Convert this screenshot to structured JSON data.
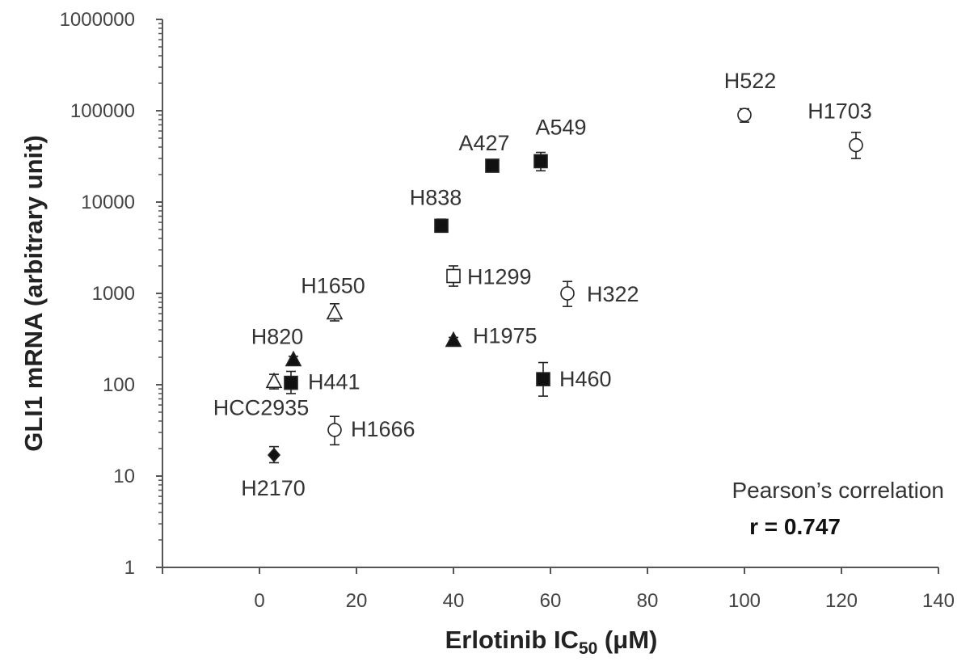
{
  "chart_data": {
    "type": "scatter",
    "title": "",
    "xlabel_main": "Erlotinib IC",
    "xlabel_sub": "50",
    "xlabel_unit": " (μM)",
    "ylabel": "GLI1 mRNA  (arbitrary unit)",
    "xlim": [
      -20,
      140
    ],
    "xticks": [
      0,
      20,
      40,
      60,
      80,
      100,
      120,
      140
    ],
    "ylim": [
      1,
      1000000
    ],
    "yscale": "log",
    "yticks": [
      1,
      10,
      100,
      1000,
      10000,
      100000,
      1000000
    ],
    "ytick_labels": [
      "1",
      "10",
      "100",
      "1000",
      "10000",
      "100000",
      "1000000"
    ],
    "grid": false,
    "annotation": {
      "line1": "Pearson’s correlation",
      "line2": "r = 0.747"
    },
    "points": [
      {
        "label": "H522",
        "x": 100,
        "y": 90000,
        "err_low": 75000,
        "err_high": 105000,
        "marker": "circle-open"
      },
      {
        "label": "H1703",
        "x": 123,
        "y": 42000,
        "err_low": 30000,
        "err_high": 58000,
        "marker": "circle-open"
      },
      {
        "label": "A427",
        "x": 48,
        "y": 25000,
        "err_low": 23000,
        "err_high": 27000,
        "marker": "square-filled"
      },
      {
        "label": "A549",
        "x": 58,
        "y": 28000,
        "err_low": 22000,
        "err_high": 35000,
        "marker": "square-filled"
      },
      {
        "label": "H838",
        "x": 37.5,
        "y": 5500,
        "err_low": 4700,
        "err_high": 6500,
        "marker": "square-filled"
      },
      {
        "label": "H1299",
        "x": 40,
        "y": 1550,
        "err_low": 1200,
        "err_high": 2000,
        "marker": "square-open"
      },
      {
        "label": "H322",
        "x": 63.5,
        "y": 1000,
        "err_low": 720,
        "err_high": 1350,
        "marker": "circle-open"
      },
      {
        "label": "H1650",
        "x": 15.5,
        "y": 620,
        "err_low": 500,
        "err_high": 770,
        "marker": "triangle-open"
      },
      {
        "label": "H1975",
        "x": 40,
        "y": 310,
        "err_low": 290,
        "err_high": 330,
        "marker": "triangle-filled"
      },
      {
        "label": "H820",
        "x": 7,
        "y": 190,
        "err_low": 175,
        "err_high": 205,
        "marker": "triangle-filled"
      },
      {
        "label": "HCC2935",
        "x": 3,
        "y": 110,
        "err_low": 90,
        "err_high": 130,
        "marker": "triangle-open"
      },
      {
        "label": "H441",
        "x": 6.5,
        "y": 105,
        "err_low": 80,
        "err_high": 140,
        "marker": "square-filled"
      },
      {
        "label": "H460",
        "x": 58.5,
        "y": 115,
        "err_low": 75,
        "err_high": 175,
        "marker": "square-filled"
      },
      {
        "label": "H1666",
        "x": 15.5,
        "y": 32,
        "err_low": 22,
        "err_high": 45,
        "marker": "circle-open"
      },
      {
        "label": "H2170",
        "x": 3,
        "y": 17,
        "err_low": 14,
        "err_high": 21,
        "marker": "diamond-filled"
      }
    ]
  }
}
